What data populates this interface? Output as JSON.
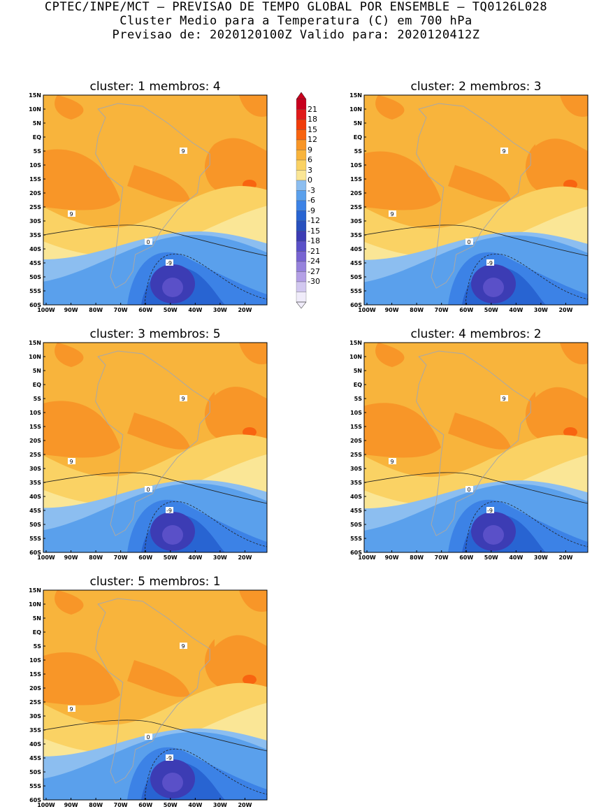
{
  "header": {
    "line1": "CPTEC/INPE/MCT – PREVISAO DE TEMPO GLOBAL POR ENSEMBLE – TQ0126L028",
    "line2": "Cluster Medio para a Temperatura (C) em 700 hPa",
    "line3": "Previsao de: 2020120100Z   Valido para: 2020120412Z"
  },
  "axes": {
    "lat_ticks": [
      "15N",
      "10N",
      "5N",
      "EQ",
      "5S",
      "10S",
      "15S",
      "20S",
      "25S",
      "30S",
      "35S",
      "40S",
      "45S",
      "50S",
      "55S",
      "60S"
    ],
    "lon_ticks": [
      "100W",
      "90W",
      "80W",
      "70W",
      "60W",
      "50W",
      "40W",
      "30W",
      "20W"
    ]
  },
  "colorbar": {
    "labels": [
      "21",
      "18",
      "15",
      "12",
      "9",
      "6",
      "3",
      "0",
      "-3",
      "-6",
      "-9",
      "-12",
      "-15",
      "-18",
      "-21",
      "-24",
      "-27",
      "-30"
    ],
    "colors": [
      "#c8001e",
      "#e01a1a",
      "#f03c0a",
      "#f86410",
      "#f89628",
      "#f8b43c",
      "#fad264",
      "#fae696",
      "#8cbef0",
      "#5aa0ec",
      "#3c82e6",
      "#2864d2",
      "#2850be",
      "#3c3cb4",
      "#5a50c8",
      "#7864d2",
      "#9682dc",
      "#b4a0e6",
      "#d2c8f0",
      "#f0ecfa"
    ]
  },
  "contour_labels": {
    "warm": "9",
    "zero": "0",
    "cold": "-9"
  },
  "panels": [
    {
      "title": "cluster: 1   membros: 4"
    },
    {
      "title": "cluster: 2   membros: 3"
    },
    {
      "title": "cluster: 3   membros: 5"
    },
    {
      "title": "cluster: 4   membros: 2"
    },
    {
      "title": "cluster: 5   membros: 1"
    }
  ]
}
